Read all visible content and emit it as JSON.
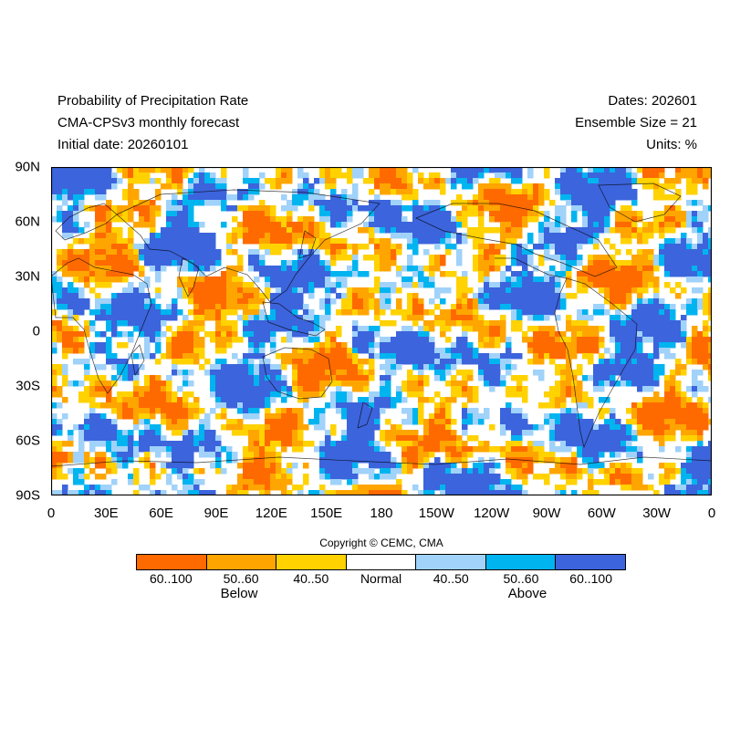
{
  "header": {
    "title_lines": [
      "Probability of Precipitation Rate",
      "CMA-CPSv3 monthly forecast",
      "Initial date: 20260101"
    ],
    "info_lines": [
      "Dates: 202601",
      "Ensemble Size = 21",
      "Units: %"
    ]
  },
  "map": {
    "projection": "equirectangular",
    "lon_range": [
      0,
      360
    ],
    "lat_range": [
      -90,
      90
    ],
    "y_ticks": [
      "90N",
      "60N",
      "30N",
      "0",
      "30S",
      "60S",
      "90S"
    ],
    "x_ticks": [
      "0",
      "30E",
      "60E",
      "90E",
      "120E",
      "150E",
      "180",
      "150W",
      "120W",
      "90W",
      "60W",
      "30W",
      "0"
    ],
    "frame_color": "#000000"
  },
  "copyright": "Copyright © CEMC, CMA",
  "legend": {
    "categories": [
      {
        "label": "60..100",
        "color": "#ff6a00"
      },
      {
        "label": "50..60",
        "color": "#ffa500"
      },
      {
        "label": "40..50",
        "color": "#ffd200"
      },
      {
        "label": "Normal",
        "color": "#ffffff"
      },
      {
        "label": "40..50",
        "color": "#a0d2fa"
      },
      {
        "label": "50..60",
        "color": "#00b4f0"
      },
      {
        "label": "60..100",
        "color": "#3c64dc"
      }
    ],
    "group_below": "Below",
    "group_above": "Above"
  }
}
